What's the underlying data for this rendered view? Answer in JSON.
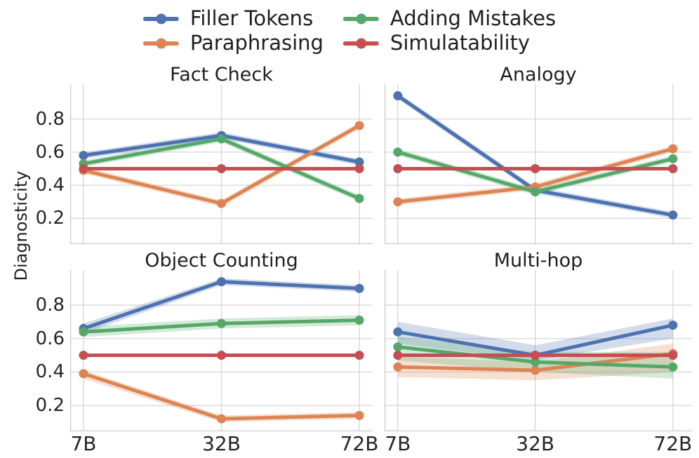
{
  "chart_data": {
    "type": "line",
    "ylabel": "Diagnosticity",
    "categories": [
      "7B",
      "32B",
      "72B"
    ],
    "yticks": [
      "0.2",
      "0.4",
      "0.6",
      "0.8"
    ],
    "ylim": [
      0.045,
      1.01
    ],
    "grid": true,
    "grid_color": "#d6d6d6",
    "spine_color": "#cccccc",
    "band_opacity": 0.25,
    "legend": {
      "position": "top-center",
      "entries": [
        {
          "label": "Filler Tokens",
          "color": "#4C72B0"
        },
        {
          "label": "Paraphrasing",
          "color": "#DD8452"
        },
        {
          "label": "Adding Mistakes",
          "color": "#55A868"
        },
        {
          "label": "Simulatability",
          "color": "#C44E52"
        }
      ]
    },
    "palette": {
      "Filler Tokens": "#4C72B0",
      "Paraphrasing": "#DD8452",
      "Adding Mistakes": "#55A868",
      "Simulatability": "#C44E52"
    },
    "subplots": [
      {
        "title": "Fact Check",
        "series": [
          {
            "name": "Filler Tokens",
            "values": [
              0.58,
              0.7,
              0.54
            ],
            "band_lo": [
              0.56,
              0.68,
              0.52
            ],
            "band_hi": [
              0.6,
              0.72,
              0.56
            ]
          },
          {
            "name": "Paraphrasing",
            "values": [
              0.49,
              0.29,
              0.76
            ],
            "band_lo": [
              0.47,
              0.27,
              0.74
            ],
            "band_hi": [
              0.51,
              0.31,
              0.78
            ]
          },
          {
            "name": "Adding Mistakes",
            "values": [
              0.53,
              0.68,
              0.32
            ],
            "band_lo": [
              0.51,
              0.66,
              0.3
            ],
            "band_hi": [
              0.55,
              0.7,
              0.34
            ]
          },
          {
            "name": "Simulatability",
            "values": [
              0.5,
              0.5,
              0.5
            ],
            "band_lo": [
              0.495,
              0.495,
              0.495
            ],
            "band_hi": [
              0.505,
              0.505,
              0.505
            ]
          }
        ]
      },
      {
        "title": "Analogy",
        "series": [
          {
            "name": "Filler Tokens",
            "values": [
              0.94,
              0.37,
              0.22
            ],
            "band_lo": [
              0.92,
              0.35,
              0.2
            ],
            "band_hi": [
              0.96,
              0.39,
              0.24
            ]
          },
          {
            "name": "Paraphrasing",
            "values": [
              0.3,
              0.39,
              0.62
            ],
            "band_lo": [
              0.28,
              0.37,
              0.6
            ],
            "band_hi": [
              0.32,
              0.41,
              0.64
            ]
          },
          {
            "name": "Adding Mistakes",
            "values": [
              0.6,
              0.36,
              0.56
            ],
            "band_lo": [
              0.58,
              0.34,
              0.54
            ],
            "band_hi": [
              0.62,
              0.38,
              0.58
            ]
          },
          {
            "name": "Simulatability",
            "values": [
              0.5,
              0.5,
              0.5
            ],
            "band_lo": [
              0.495,
              0.495,
              0.495
            ],
            "band_hi": [
              0.505,
              0.505,
              0.505
            ]
          }
        ]
      },
      {
        "title": "Object Counting",
        "series": [
          {
            "name": "Filler Tokens",
            "values": [
              0.66,
              0.94,
              0.9
            ],
            "band_lo": [
              0.63,
              0.92,
              0.88
            ],
            "band_hi": [
              0.69,
              0.96,
              0.92
            ]
          },
          {
            "name": "Paraphrasing",
            "values": [
              0.39,
              0.12,
              0.14
            ],
            "band_lo": [
              0.36,
              0.1,
              0.12
            ],
            "band_hi": [
              0.41,
              0.14,
              0.16
            ]
          },
          {
            "name": "Adding Mistakes",
            "values": [
              0.64,
              0.69,
              0.71
            ],
            "band_lo": [
              0.61,
              0.66,
              0.68
            ],
            "band_hi": [
              0.67,
              0.72,
              0.74
            ]
          },
          {
            "name": "Simulatability",
            "values": [
              0.5,
              0.5,
              0.5
            ],
            "band_lo": [
              0.495,
              0.495,
              0.495
            ],
            "band_hi": [
              0.505,
              0.505,
              0.505
            ]
          }
        ]
      },
      {
        "title": "Multi-hop",
        "series": [
          {
            "name": "Filler Tokens",
            "values": [
              0.64,
              0.5,
              0.68
            ],
            "band_lo": [
              0.57,
              0.47,
              0.6
            ],
            "band_hi": [
              0.7,
              0.56,
              0.72
            ]
          },
          {
            "name": "Paraphrasing",
            "values": [
              0.43,
              0.41,
              0.51
            ],
            "band_lo": [
              0.37,
              0.35,
              0.4
            ],
            "band_hi": [
              0.49,
              0.46,
              0.57
            ]
          },
          {
            "name": "Adding Mistakes",
            "values": [
              0.55,
              0.46,
              0.43
            ],
            "band_lo": [
              0.47,
              0.4,
              0.36
            ],
            "band_hi": [
              0.61,
              0.52,
              0.52
            ]
          },
          {
            "name": "Simulatability",
            "values": [
              0.5,
              0.5,
              0.5
            ],
            "band_lo": [
              0.495,
              0.495,
              0.495
            ],
            "band_hi": [
              0.505,
              0.505,
              0.505
            ]
          }
        ]
      }
    ]
  }
}
